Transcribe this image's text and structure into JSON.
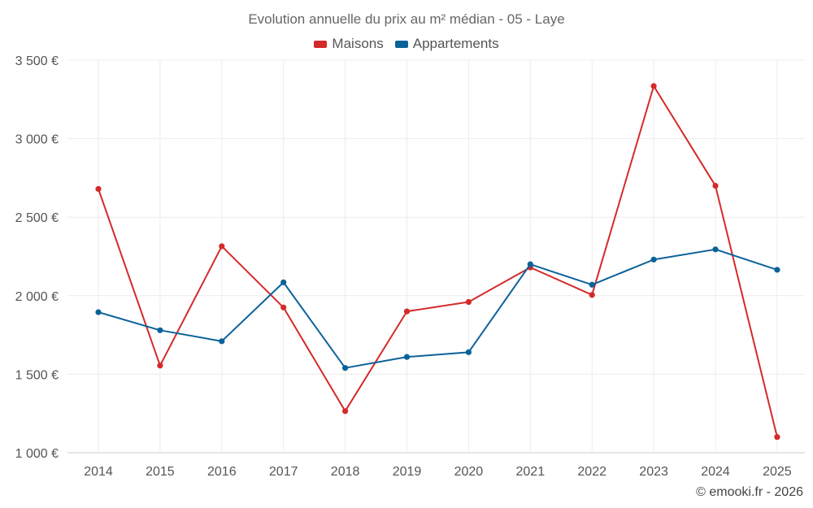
{
  "chart_data": {
    "type": "line",
    "title": "Evolution annuelle du prix au m² médian - 05 - Laye",
    "categories": [
      "2014",
      "2015",
      "2016",
      "2017",
      "2018",
      "2019",
      "2020",
      "2021",
      "2022",
      "2023",
      "2024",
      "2025"
    ],
    "series": [
      {
        "name": "Maisons",
        "color": "#d42a2a",
        "values": [
          2680,
          1555,
          2315,
          1925,
          1265,
          1900,
          1960,
          2180,
          2005,
          3335,
          2700,
          1100
        ]
      },
      {
        "name": "Appartements",
        "color": "#0b6299",
        "values": [
          1895,
          1780,
          1710,
          2085,
          1540,
          1610,
          1640,
          2200,
          2070,
          2230,
          2295,
          2165
        ]
      }
    ],
    "ylim": [
      1000,
      3500
    ],
    "yticks": [
      {
        "value": 1000,
        "label": "1 000 €"
      },
      {
        "value": 1500,
        "label": "1 500 €"
      },
      {
        "value": 2000,
        "label": "2 000 €"
      },
      {
        "value": 2500,
        "label": "2 500 €"
      },
      {
        "value": 3000,
        "label": "3 000 €"
      },
      {
        "value": 3500,
        "label": "3 500 €"
      }
    ],
    "xlabel": "",
    "ylabel": "",
    "grid": true,
    "legend_position": "top-center"
  },
  "copyright": "© emooki.fr - 2026"
}
